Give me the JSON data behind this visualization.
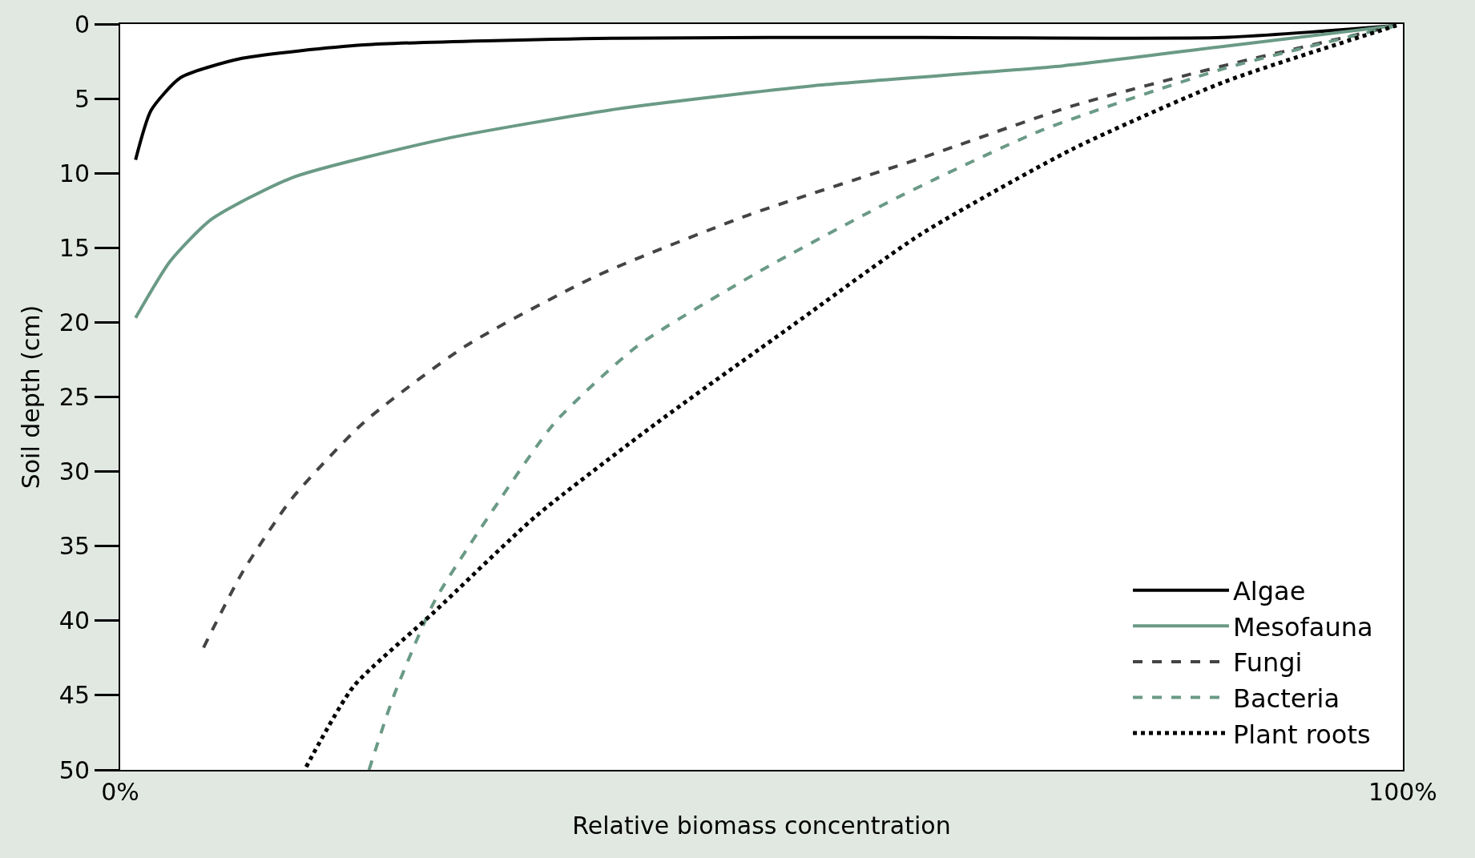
{
  "chart_data": {
    "type": "line",
    "xlabel": "Relative biomass concentration",
    "ylabel": "Soil depth (cm)",
    "xlim": [
      0,
      100
    ],
    "ylim": [
      50,
      0
    ],
    "xticks": [
      {
        "value": 0,
        "label": "0%"
      },
      {
        "value": 100,
        "label": "100%"
      }
    ],
    "yticks": [
      0,
      5,
      10,
      15,
      20,
      25,
      30,
      35,
      40,
      45,
      50
    ],
    "legend": "bottom right",
    "marker": "none",
    "series": [
      {
        "name": "Algae",
        "color": "#000000",
        "line_style": "solid",
        "x": [
          1.2,
          2.4,
          4.7,
          9.5,
          19,
          38.7,
          62.4,
          86,
          99.5
        ],
        "values": [
          9.1,
          5.8,
          3.6,
          2.3,
          1.4,
          0.95,
          0.9,
          0.9,
          0.1
        ]
      },
      {
        "name": "Mesofauna",
        "color": "#6a9a86",
        "line_style": "solid",
        "x": [
          1.2,
          3.9,
          7.1,
          13.4,
          25.3,
          38.7,
          54.5,
          73.5,
          86,
          99.5
        ],
        "values": [
          19.7,
          15.9,
          13.1,
          10.3,
          7.7,
          5.7,
          4.1,
          2.8,
          1.5,
          0.1
        ]
      },
      {
        "name": "Fungi",
        "color": "#444444",
        "line_style": "dashed",
        "x": [
          6.5,
          9.5,
          13.4,
          19,
          26.9,
          37.1,
          49,
          62.4,
          74.2,
          86,
          99.5
        ],
        "values": [
          41.8,
          36.8,
          31.8,
          26.7,
          21.6,
          16.9,
          12.8,
          9.0,
          5.5,
          2.8,
          0.1
        ]
      },
      {
        "name": "Bacteria",
        "color": "#6a9a86",
        "line_style": "dashed",
        "x": [
          19.4,
          21.3,
          24.5,
          29.2,
          33.9,
          40.3,
          49.8,
          60.9,
          71.9,
          86,
          99.5
        ],
        "values": [
          50,
          45.1,
          38.7,
          32.4,
          26.7,
          21.6,
          16.6,
          11.5,
          7.1,
          3.0,
          0.1
        ]
      },
      {
        "name": "Plant roots",
        "color": "#000000",
        "line_style": "dotted",
        "x": [
          14.5,
          18.2,
          24.5,
          32.4,
          41.9,
          52.1,
          62.4,
          74.2,
          86,
          99.5
        ],
        "values": [
          49.8,
          44.4,
          39.4,
          33.0,
          26.7,
          20.4,
          14.1,
          8.4,
          3.9,
          0.1
        ]
      }
    ]
  }
}
